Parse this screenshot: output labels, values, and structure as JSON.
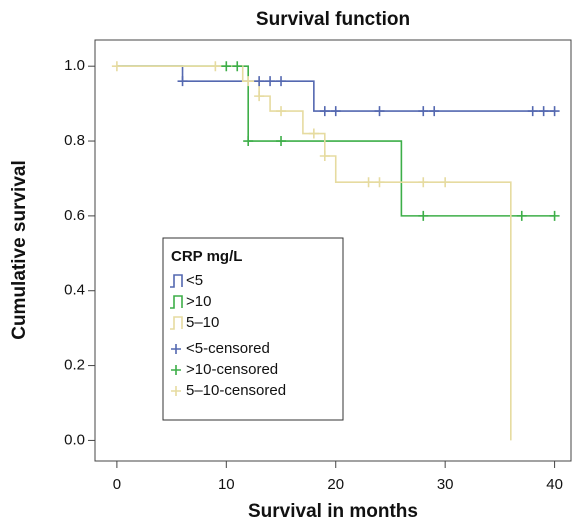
{
  "chart_data": {
    "type": "step",
    "title": "Survival function",
    "xlabel": "Survival in months",
    "ylabel": "Cumulative survival",
    "legend_title": "CRP mg/L",
    "xlim": [
      -2,
      41.5
    ],
    "ylim": [
      -0.055,
      1.07
    ],
    "xticks": [
      0,
      10,
      20,
      30,
      40
    ],
    "yticks": [
      {
        "value": 0,
        "label": "0.0"
      },
      0.2,
      0.4,
      0.6,
      0.8,
      {
        "value": 1,
        "label": "1.0"
      }
    ],
    "series": [
      {
        "name": "<5",
        "color": "#5468b0",
        "kind": "line",
        "x": [
          0,
          6,
          18,
          40
        ],
        "values": [
          1.0,
          0.96,
          0.88,
          0.88
        ]
      },
      {
        "name": ">10",
        "color": "#3dae48",
        "kind": "line",
        "x": [
          0,
          12,
          26,
          40
        ],
        "values": [
          1.0,
          0.8,
          0.6,
          0.6
        ]
      },
      {
        "name": "5–10",
        "color": "#e6dba0",
        "kind": "line",
        "x": [
          0,
          11.5,
          13,
          14,
          17,
          19,
          20,
          36,
          36
        ],
        "values": [
          1.0,
          0.96,
          0.92,
          0.88,
          0.82,
          0.76,
          0.69,
          0.69,
          0
        ]
      },
      {
        "name": "<5-censored",
        "color": "#5468b0",
        "kind": "censored",
        "x": [
          6,
          13,
          14,
          15,
          19,
          20,
          24,
          28,
          29,
          38,
          39,
          40
        ],
        "values": [
          0.96,
          0.96,
          0.96,
          0.96,
          0.88,
          0.88,
          0.88,
          0.88,
          0.88,
          0.88,
          0.88,
          0.88
        ]
      },
      {
        "name": ">10-censored",
        "color": "#3dae48",
        "kind": "censored",
        "x": [
          10,
          11,
          12,
          15,
          28,
          37,
          40
        ],
        "values": [
          1.0,
          1.0,
          0.8,
          0.8,
          0.6,
          0.6,
          0.6
        ]
      },
      {
        "name": "5–10-censored",
        "color": "#e6dba0",
        "kind": "censored",
        "x": [
          0,
          9,
          12,
          13,
          15,
          18,
          19,
          23,
          24,
          28,
          30
        ],
        "values": [
          1.0,
          1.0,
          0.96,
          0.92,
          0.88,
          0.82,
          0.76,
          0.69,
          0.69,
          0.69,
          0.69
        ]
      }
    ]
  }
}
